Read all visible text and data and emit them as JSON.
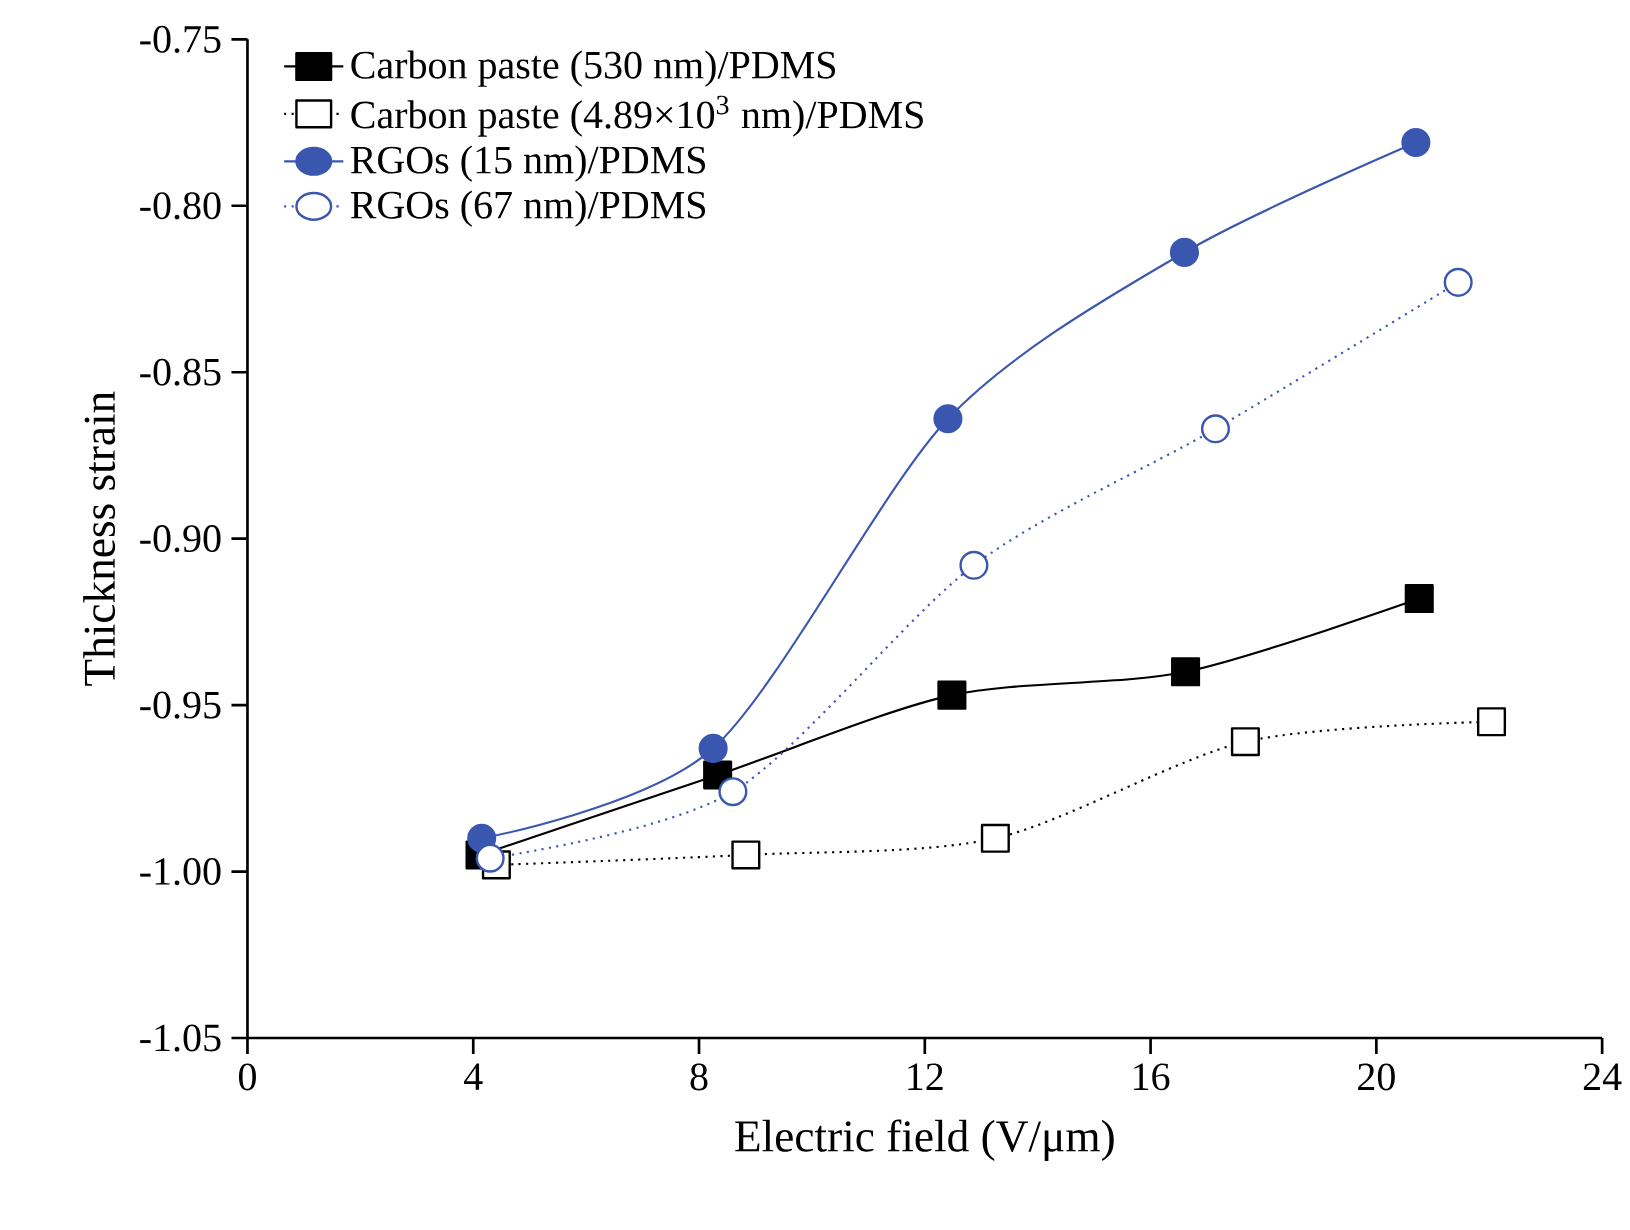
{
  "chart_data": {
    "type": "line",
    "xlabel": "Electric field (V/μm)",
    "ylabel": "Thickness strain",
    "xlim": [
      0,
      24
    ],
    "xticks": [
      0,
      4,
      8,
      12,
      16,
      20,
      24
    ],
    "ylim": [
      -1.05,
      -0.75
    ],
    "yticks": [
      {
        "value": -1.05,
        "label": "-1.05"
      },
      {
        "value": -1.0,
        "label": "-1.00"
      },
      {
        "value": -0.95,
        "label": "-0.95"
      },
      {
        "value": -0.9,
        "label": "-0.90"
      },
      {
        "value": -0.85,
        "label": "-0.85"
      },
      {
        "value": -0.8,
        "label": "-0.80"
      },
      {
        "value": -0.75,
        "label": "-0.75"
      }
    ],
    "grid": false,
    "legend": "top left",
    "series": [
      {
        "name": "Carbon paste (530 nm)/PDMS",
        "color": "#000000",
        "marker": "square",
        "line_style": "solid",
        "x": [
          4.12,
          8.33,
          12.48,
          16.62,
          20.76
        ],
        "values": [
          -0.995,
          -0.971,
          -0.947,
          -0.94,
          -0.918
        ]
      },
      {
        "name": "Carbon paste (4.89×10$^{3}$ nm)/PDMS",
        "color": "#000000",
        "marker": "square",
        "line_style": "dotted",
        "x": [
          4.41,
          8.83,
          13.25,
          17.68,
          22.04
        ],
        "values": [
          -0.998,
          -0.995,
          -0.99,
          -0.961,
          -0.955
        ]
      },
      {
        "name": "RGOs (15 nm)/PDMS",
        "color": "#3a57b0",
        "marker": "circle",
        "line_style": "solid",
        "x": [
          4.15,
          8.25,
          12.41,
          16.6,
          20.7
        ],
        "values": [
          -0.99,
          -0.963,
          -0.864,
          -0.814,
          -0.781
        ]
      },
      {
        "name": "RGOs (67 nm)/PDMS",
        "color": "#3a57b0",
        "marker": "circle",
        "line_style": "dotted",
        "x": [
          4.3,
          8.6,
          12.87,
          17.15,
          21.45
        ],
        "values": [
          -0.996,
          -0.976,
          -0.908,
          -0.867,
          -0.823
        ]
      }
    ]
  }
}
